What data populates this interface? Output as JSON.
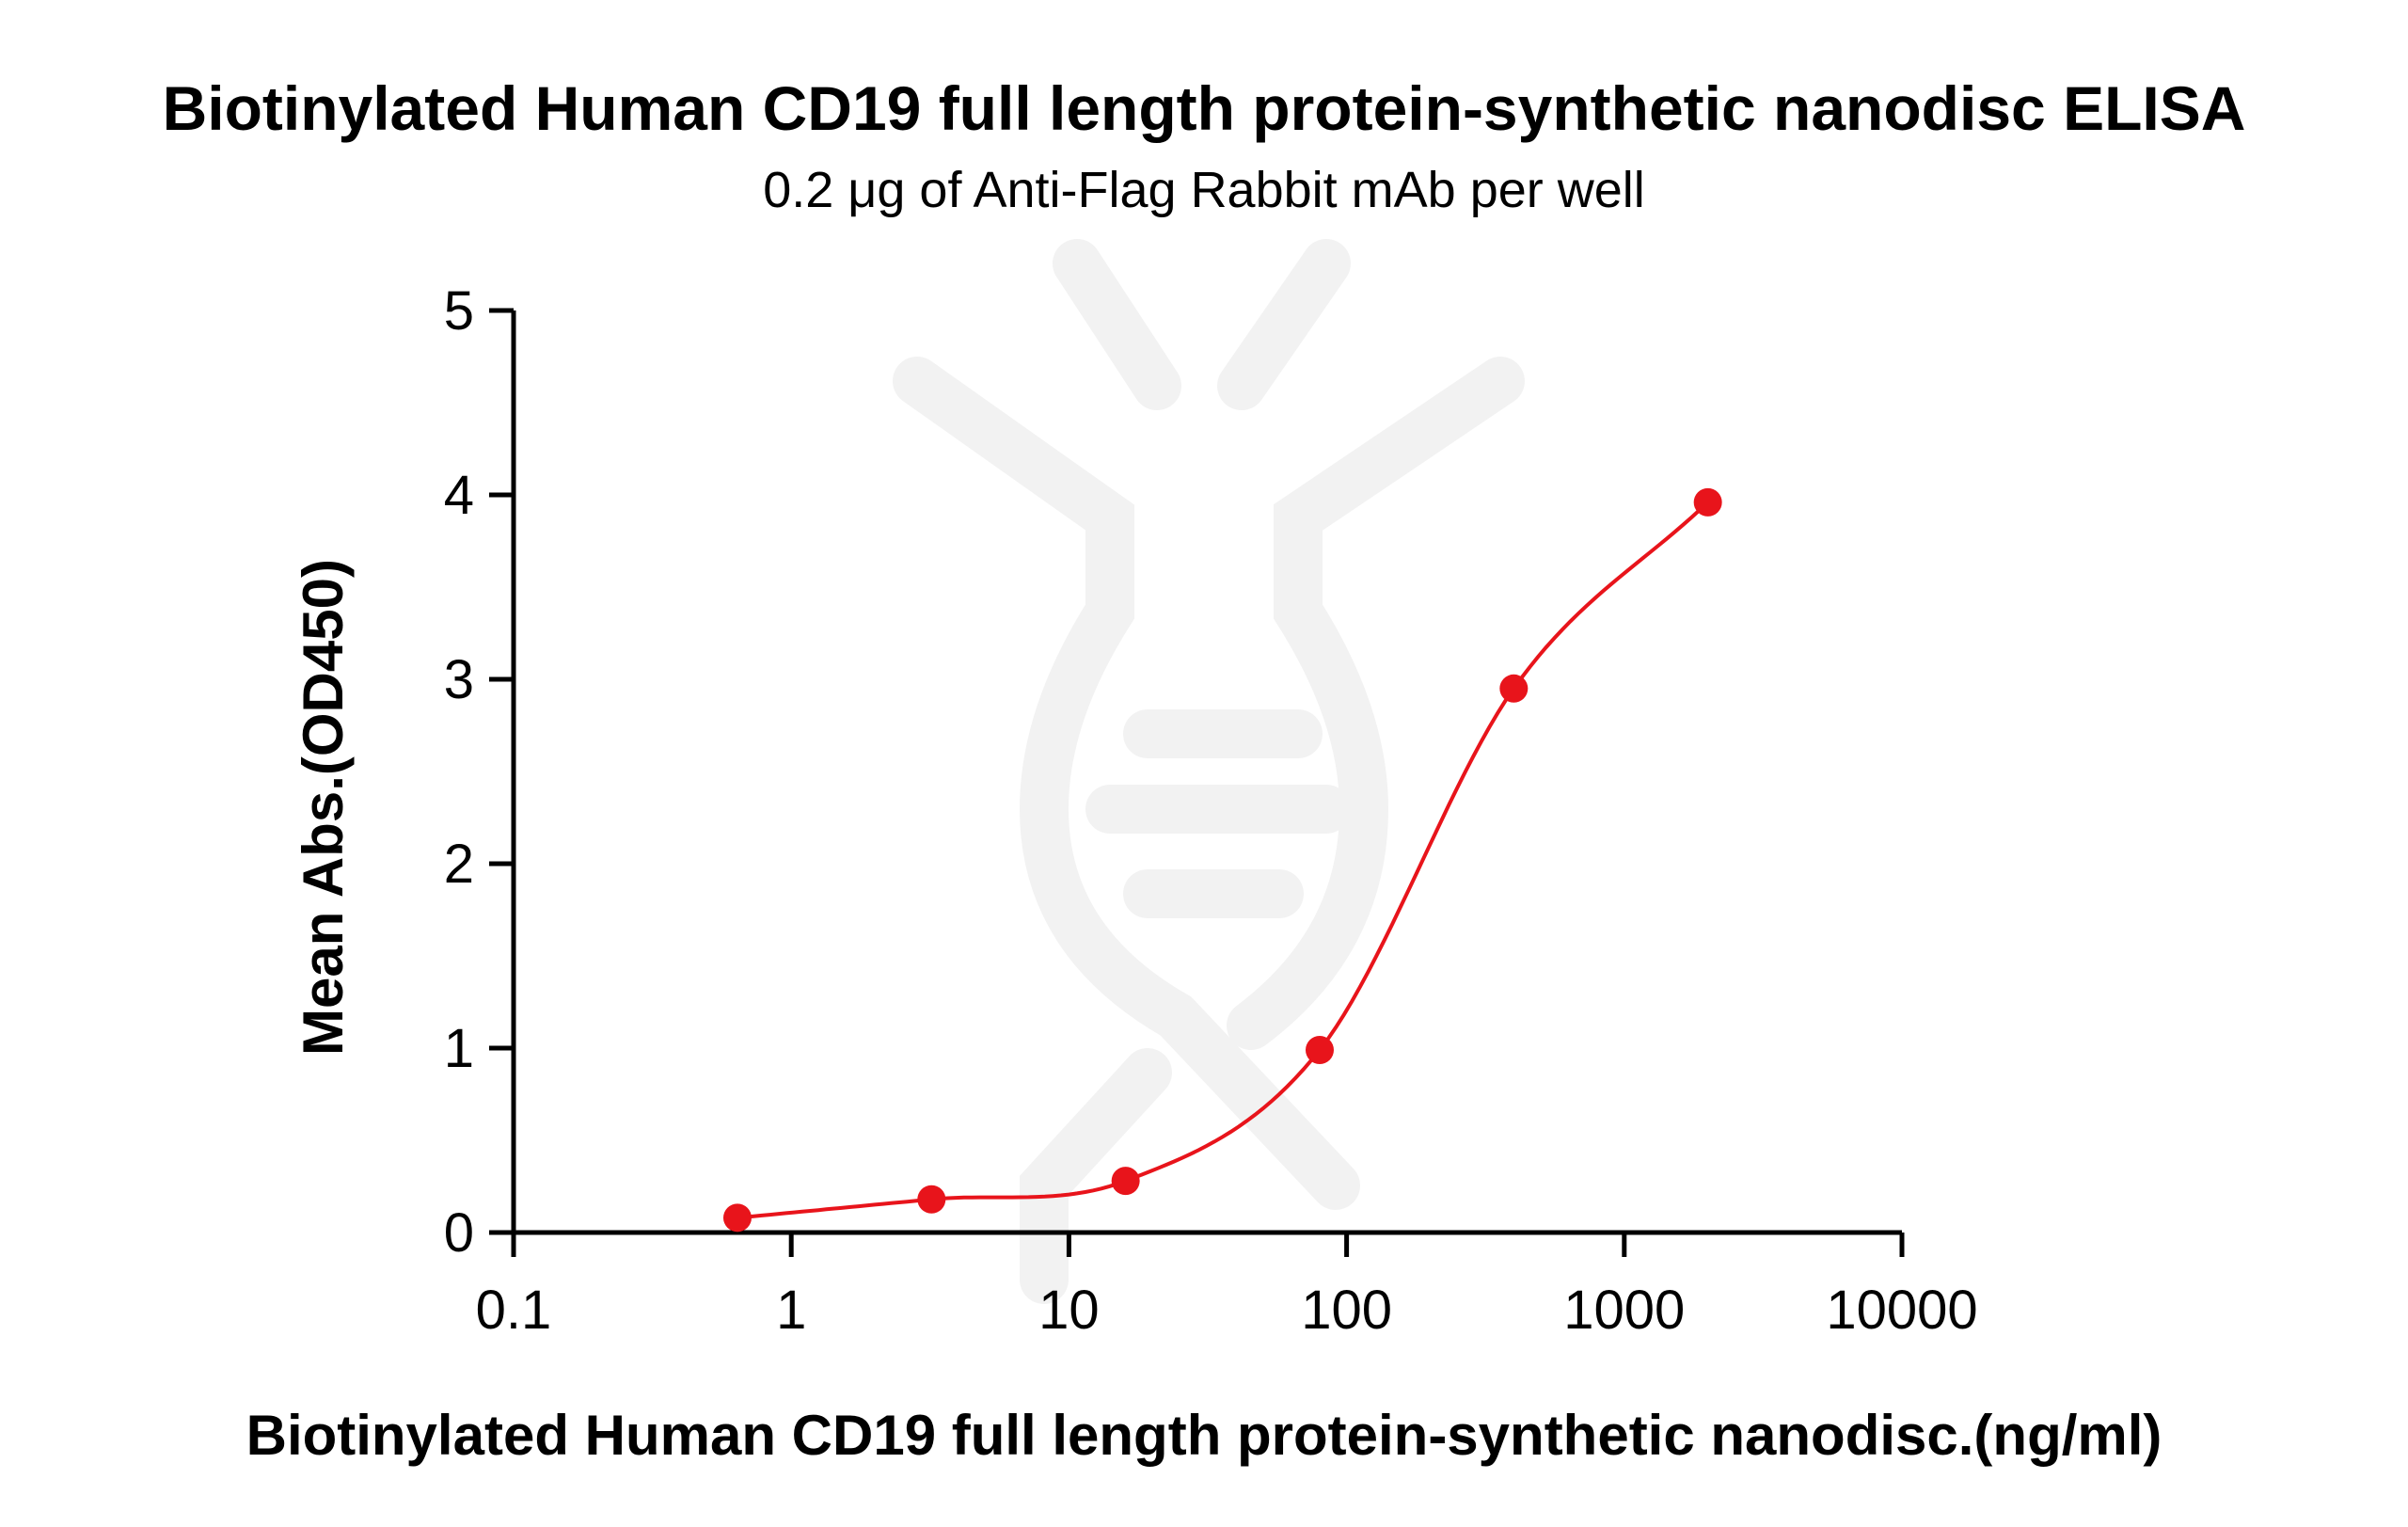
{
  "chart_data": {
    "type": "scatter",
    "title": "Biotinylated Human CD19 full length protein-synthetic nanodisc ELISA",
    "subtitle": "0.2 μg of Anti-Flag Rabbit mAb per well",
    "xlabel": "Biotinylated Human CD19 full length protein-synthetic nanodisc.(ng/ml)",
    "ylabel": "Mean Abs.(OD450)",
    "x_scale": "log",
    "xlim": [
      0.1,
      10000
    ],
    "ylim": [
      0,
      5
    ],
    "x_ticks": [
      "0.1",
      "1",
      "10",
      "100",
      "1000",
      "10000"
    ],
    "y_ticks": [
      "0",
      "1",
      "2",
      "3",
      "4",
      "5"
    ],
    "grid": false,
    "series": [
      {
        "color": "#e8141b",
        "x": [
          0.64,
          3.2,
          16,
          80,
          400,
          2000
        ],
        "y": [
          0.08,
          0.18,
          0.28,
          0.99,
          2.95,
          3.96
        ],
        "fit": "sigmoidal"
      }
    ]
  }
}
